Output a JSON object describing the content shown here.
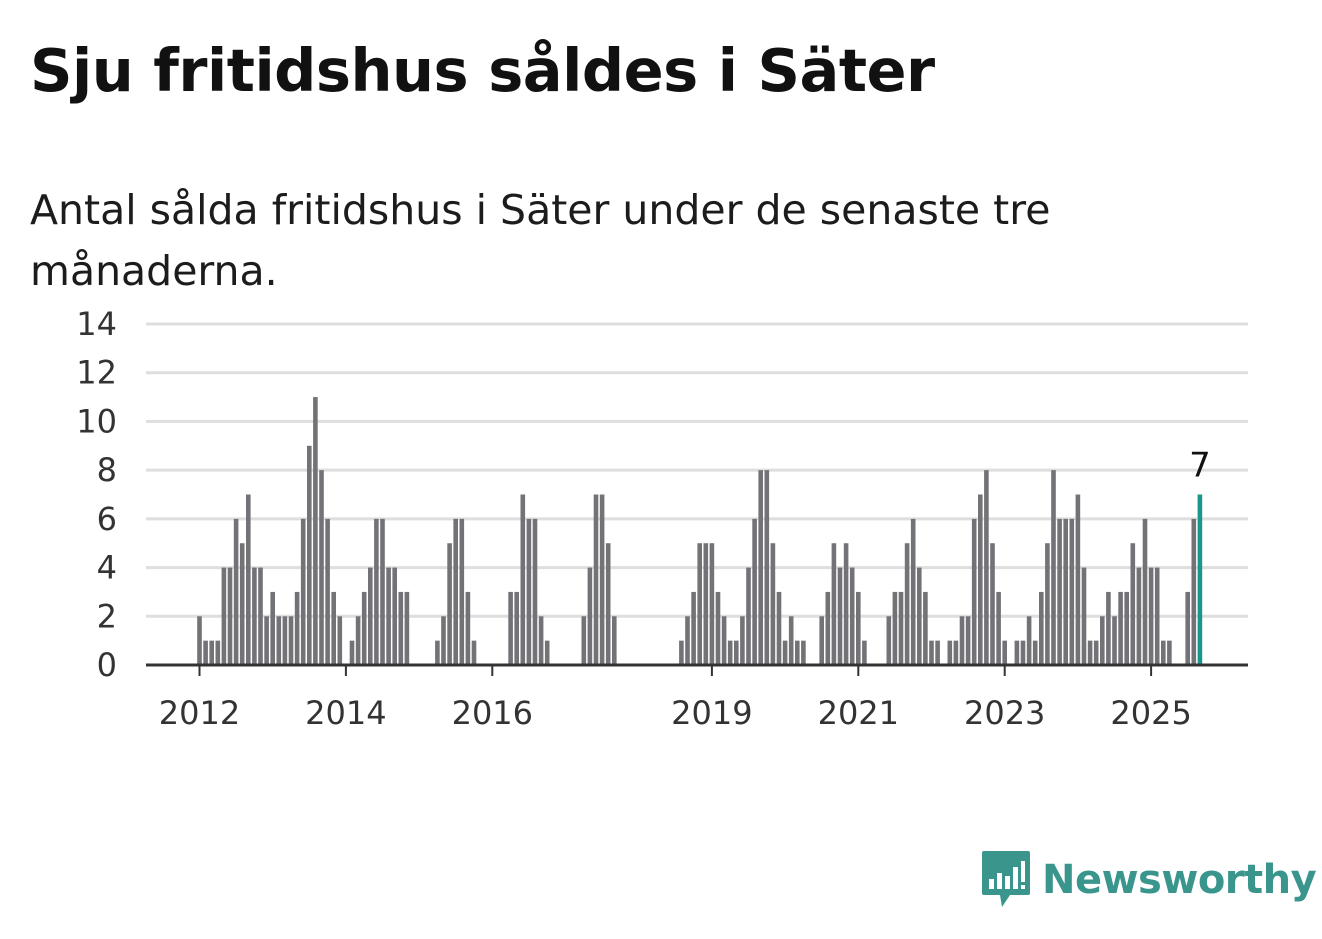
{
  "title": "Sju fritidshus såldes i Säter",
  "subtitle": "Antal sålda fritidshus i Säter under de senaste tre månaderna.",
  "brand": {
    "name": "Newsworthy",
    "color": "#3a968d",
    "icon": "newsworthy-logo-icon"
  },
  "colors": {
    "bar": "#737277",
    "highlight": "#17988a",
    "grid": "#dedede",
    "axis": "#333333"
  },
  "chart_data": {
    "type": "bar",
    "ylim": [
      0,
      14
    ],
    "y_ticks": [
      "0",
      "2",
      "4",
      "6",
      "8",
      "10",
      "12",
      "14"
    ],
    "x_tick_labels": [
      {
        "label": "2012",
        "index": 0
      },
      {
        "label": "2014",
        "index": 24
      },
      {
        "label": "2016",
        "index": 48
      },
      {
        "label": "2019",
        "index": 84
      },
      {
        "label": "2021",
        "index": 108
      },
      {
        "label": "2023",
        "index": 132
      },
      {
        "label": "2025",
        "index": 156
      }
    ],
    "grid": true,
    "highlight_label": "7",
    "values": [
      2,
      1,
      1,
      1,
      4,
      4,
      6,
      5,
      7,
      4,
      4,
      2,
      3,
      2,
      2,
      2,
      3,
      6,
      9,
      11,
      8,
      6,
      3,
      2,
      0,
      1,
      2,
      3,
      4,
      6,
      6,
      4,
      4,
      3,
      3,
      0,
      0,
      0,
      0,
      1,
      2,
      5,
      6,
      6,
      3,
      1,
      0,
      0,
      0,
      0,
      0,
      3,
      3,
      7,
      6,
      6,
      2,
      1,
      0,
      0,
      0,
      0,
      0,
      2,
      4,
      7,
      7,
      5,
      2,
      0,
      0,
      0,
      0,
      0,
      0,
      0,
      0,
      0,
      0,
      1,
      2,
      3,
      5,
      5,
      5,
      3,
      2,
      1,
      1,
      2,
      4,
      6,
      8,
      8,
      5,
      3,
      1,
      2,
      1,
      1,
      0,
      0,
      2,
      3,
      5,
      4,
      5,
      4,
      3,
      1,
      0,
      0,
      0,
      2,
      3,
      3,
      5,
      6,
      4,
      3,
      1,
      1,
      0,
      1,
      1,
      2,
      2,
      6,
      7,
      8,
      5,
      3,
      1,
      0,
      1,
      1,
      2,
      1,
      3,
      5,
      8,
      6,
      6,
      6,
      7,
      4,
      1,
      1,
      2,
      3,
      2,
      3,
      3,
      5,
      4,
      6,
      4,
      4,
      1,
      1,
      0,
      0,
      3,
      6,
      7
    ]
  }
}
